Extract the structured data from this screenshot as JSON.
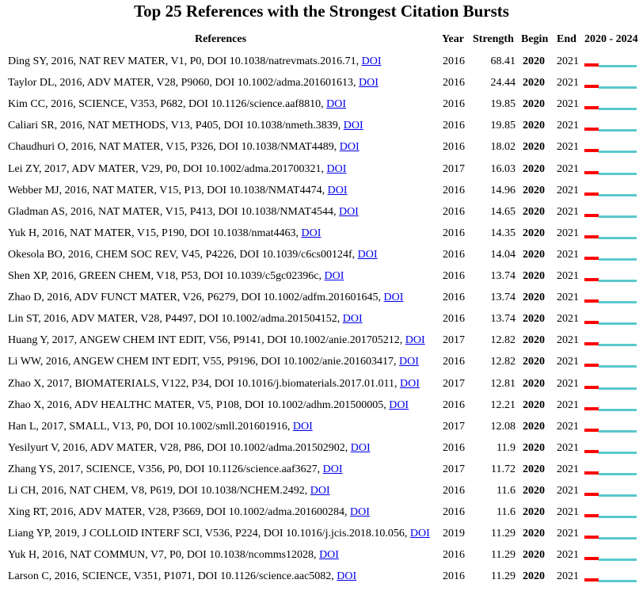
{
  "title": "Top 25 References with the Strongest Citation Bursts",
  "headers": {
    "references": "References",
    "year": "Year",
    "strength": "Strength",
    "begin": "Begin",
    "end": "End",
    "range": "2020 - 2024"
  },
  "link_label": "DOI",
  "colors": {
    "burst": "#ff0000",
    "base": "#5ac8cc",
    "link": "#0000ee"
  },
  "chart_data": {
    "type": "table",
    "timeline": {
      "start": 2020,
      "end": 2024
    },
    "rows": [
      {
        "ref": "Ding SY, 2016, NAT REV MATER, V1, P0, DOI 10.1038/natrevmats.2016.71,",
        "year": "2016",
        "strength": "68.41",
        "begin": "2020",
        "end": "2021"
      },
      {
        "ref": "Taylor DL, 2016, ADV MATER, V28, P9060, DOI 10.1002/adma.201601613,",
        "year": "2016",
        "strength": "24.44",
        "begin": "2020",
        "end": "2021"
      },
      {
        "ref": "Kim CC, 2016, SCIENCE, V353, P682, DOI 10.1126/science.aaf8810,",
        "year": "2016",
        "strength": "19.85",
        "begin": "2020",
        "end": "2021"
      },
      {
        "ref": "Caliari SR, 2016, NAT METHODS, V13, P405, DOI 10.1038/nmeth.3839,",
        "year": "2016",
        "strength": "19.85",
        "begin": "2020",
        "end": "2021"
      },
      {
        "ref": "Chaudhuri O, 2016, NAT MATER, V15, P326, DOI 10.1038/NMAT4489,",
        "year": "2016",
        "strength": "18.02",
        "begin": "2020",
        "end": "2021"
      },
      {
        "ref": "Lei ZY, 2017, ADV MATER, V29, P0, DOI 10.1002/adma.201700321,",
        "year": "2017",
        "strength": "16.03",
        "begin": "2020",
        "end": "2021"
      },
      {
        "ref": "Webber MJ, 2016, NAT MATER, V15, P13, DOI 10.1038/NMAT4474,",
        "year": "2016",
        "strength": "14.96",
        "begin": "2020",
        "end": "2021"
      },
      {
        "ref": "Gladman AS, 2016, NAT MATER, V15, P413, DOI 10.1038/NMAT4544,",
        "year": "2016",
        "strength": "14.65",
        "begin": "2020",
        "end": "2021"
      },
      {
        "ref": "Yuk H, 2016, NAT MATER, V15, P190, DOI 10.1038/nmat4463,",
        "year": "2016",
        "strength": "14.35",
        "begin": "2020",
        "end": "2021"
      },
      {
        "ref": "Okesola BO, 2016, CHEM SOC REV, V45, P4226, DOI 10.1039/c6cs00124f,",
        "year": "2016",
        "strength": "14.04",
        "begin": "2020",
        "end": "2021"
      },
      {
        "ref": "Shen XP, 2016, GREEN CHEM, V18, P53, DOI 10.1039/c5gc02396c,",
        "year": "2016",
        "strength": "13.74",
        "begin": "2020",
        "end": "2021"
      },
      {
        "ref": "Zhao D, 2016, ADV FUNCT MATER, V26, P6279, DOI 10.1002/adfm.201601645,",
        "year": "2016",
        "strength": "13.74",
        "begin": "2020",
        "end": "2021"
      },
      {
        "ref": "Lin ST, 2016, ADV MATER, V28, P4497, DOI 10.1002/adma.201504152,",
        "year": "2016",
        "strength": "13.74",
        "begin": "2020",
        "end": "2021"
      },
      {
        "ref": "Huang Y, 2017, ANGEW CHEM INT EDIT, V56, P9141, DOI 10.1002/anie.201705212,",
        "year": "2017",
        "strength": "12.82",
        "begin": "2020",
        "end": "2021"
      },
      {
        "ref": "Li WW, 2016, ANGEW CHEM INT EDIT, V55, P9196, DOI 10.1002/anie.201603417,",
        "year": "2016",
        "strength": "12.82",
        "begin": "2020",
        "end": "2021"
      },
      {
        "ref": "Zhao X, 2017, BIOMATERIALS, V122, P34, DOI 10.1016/j.biomaterials.2017.01.011,",
        "year": "2017",
        "strength": "12.81",
        "begin": "2020",
        "end": "2021"
      },
      {
        "ref": "Zhao X, 2016, ADV HEALTHC MATER, V5, P108, DOI 10.1002/adhm.201500005,",
        "year": "2016",
        "strength": "12.21",
        "begin": "2020",
        "end": "2021"
      },
      {
        "ref": "Han L, 2017, SMALL, V13, P0, DOI 10.1002/smll.201601916,",
        "year": "2017",
        "strength": "12.08",
        "begin": "2020",
        "end": "2021"
      },
      {
        "ref": "Yesilyurt V, 2016, ADV MATER, V28, P86, DOI 10.1002/adma.201502902,",
        "year": "2016",
        "strength": "11.9",
        "begin": "2020",
        "end": "2021"
      },
      {
        "ref": "Zhang YS, 2017, SCIENCE, V356, P0, DOI 10.1126/science.aaf3627,",
        "year": "2017",
        "strength": "11.72",
        "begin": "2020",
        "end": "2021"
      },
      {
        "ref": "Li CH, 2016, NAT CHEM, V8, P619, DOI 10.1038/NCHEM.2492,",
        "year": "2016",
        "strength": "11.6",
        "begin": "2020",
        "end": "2021"
      },
      {
        "ref": "Xing RT, 2016, ADV MATER, V28, P3669, DOI 10.1002/adma.201600284,",
        "year": "2016",
        "strength": "11.6",
        "begin": "2020",
        "end": "2021"
      },
      {
        "ref": "Liang YP, 2019, J COLLOID INTERF SCI, V536, P224, DOI 10.1016/j.jcis.2018.10.056,",
        "year": "2019",
        "strength": "11.29",
        "begin": "2020",
        "end": "2021"
      },
      {
        "ref": "Yuk H, 2016, NAT COMMUN, V7, P0, DOI 10.1038/ncomms12028,",
        "year": "2016",
        "strength": "11.29",
        "begin": "2020",
        "end": "2021"
      },
      {
        "ref": "Larson C, 2016, SCIENCE, V351, P1071, DOI 10.1126/science.aac5082,",
        "year": "2016",
        "strength": "11.29",
        "begin": "2020",
        "end": "2021"
      }
    ]
  }
}
